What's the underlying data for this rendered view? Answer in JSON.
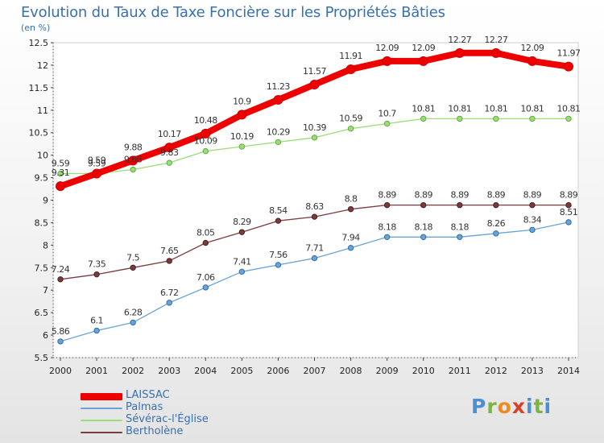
{
  "chart_data": {
    "type": "line",
    "title": "Evolution du Taux de Taxe Foncière sur les Propriétés Bâties",
    "ylabel": "(en %)",
    "xlabel": "",
    "x": [
      "2000",
      "2001",
      "2002",
      "2003",
      "2004",
      "2005",
      "2006",
      "2007",
      "2008",
      "2009",
      "2010",
      "2011",
      "2012",
      "2013",
      "2014"
    ],
    "ylim": [
      5.5,
      12.5
    ],
    "yticks": [
      5.5,
      6,
      6.5,
      7,
      7.5,
      8,
      8.5,
      9,
      9.5,
      10,
      10.5,
      11,
      11.5,
      12,
      12.5
    ],
    "ytick_labels": [
      "5.5",
      "6",
      "6.5",
      "7",
      "7.5",
      "8",
      "8.5",
      "9",
      "9.5",
      "10",
      "10.5",
      "11",
      "11.5",
      "12",
      "12.5"
    ],
    "grid": false,
    "legend_position": "bottom-left",
    "series": [
      {
        "name": "LAISSAC",
        "color": "#ee0000",
        "values": [
          9.31,
          9.59,
          9.88,
          10.17,
          10.48,
          10.9,
          11.23,
          11.57,
          11.91,
          12.09,
          12.09,
          12.27,
          12.27,
          12.09,
          11.97
        ],
        "labels": [
          "9.31",
          "9.59",
          "9.88",
          "10.17",
          "10.48",
          "10.9",
          "11.23",
          "11.57",
          "11.91",
          "12.09",
          "12.09",
          "12.27",
          "12.27",
          "12.09",
          "11.97"
        ]
      },
      {
        "name": "Palmas",
        "color": "#6aa3d5",
        "values": [
          5.86,
          6.1,
          6.28,
          6.72,
          7.06,
          7.41,
          7.56,
          7.71,
          7.94,
          8.18,
          8.18,
          8.18,
          8.26,
          8.34,
          8.51
        ],
        "labels": [
          "5.86",
          "6.1",
          "6.28",
          "6.72",
          "7.06",
          "7.41",
          "7.56",
          "7.71",
          "7.94",
          "8.18",
          "8.18",
          "8.18",
          "8.26",
          "8.34",
          "8.51"
        ]
      },
      {
        "name": "Sévérac-l'Église",
        "color": "#99dd77",
        "values": [
          9.59,
          9.59,
          9.68,
          9.83,
          10.09,
          10.19,
          10.29,
          10.39,
          10.59,
          10.7,
          10.81,
          10.81,
          10.81,
          10.81,
          10.81
        ],
        "labels": [
          "9.59",
          "9.59",
          "9.68",
          "9.83",
          "10.09",
          "10.19",
          "10.29",
          "10.39",
          "10.59",
          "10.7",
          "10.81",
          "10.81",
          "10.81",
          "10.81",
          "10.81"
        ]
      },
      {
        "name": "Bertholène",
        "color": "#7a3b3b",
        "values": [
          7.24,
          7.35,
          7.5,
          7.65,
          8.05,
          8.29,
          8.54,
          8.63,
          8.8,
          8.89,
          8.89,
          8.89,
          8.89,
          8.89,
          8.89
        ],
        "labels": [
          "7.24",
          "7.35",
          "7.5",
          "7.65",
          "8.05",
          "8.29",
          "8.54",
          "8.63",
          "8.8",
          "8.89",
          "8.89",
          "8.89",
          "8.89",
          "8.89",
          "8.89"
        ]
      }
    ]
  },
  "logo": {
    "letters": [
      "P",
      "r",
      "o",
      "x",
      "i",
      "t",
      "i"
    ]
  }
}
